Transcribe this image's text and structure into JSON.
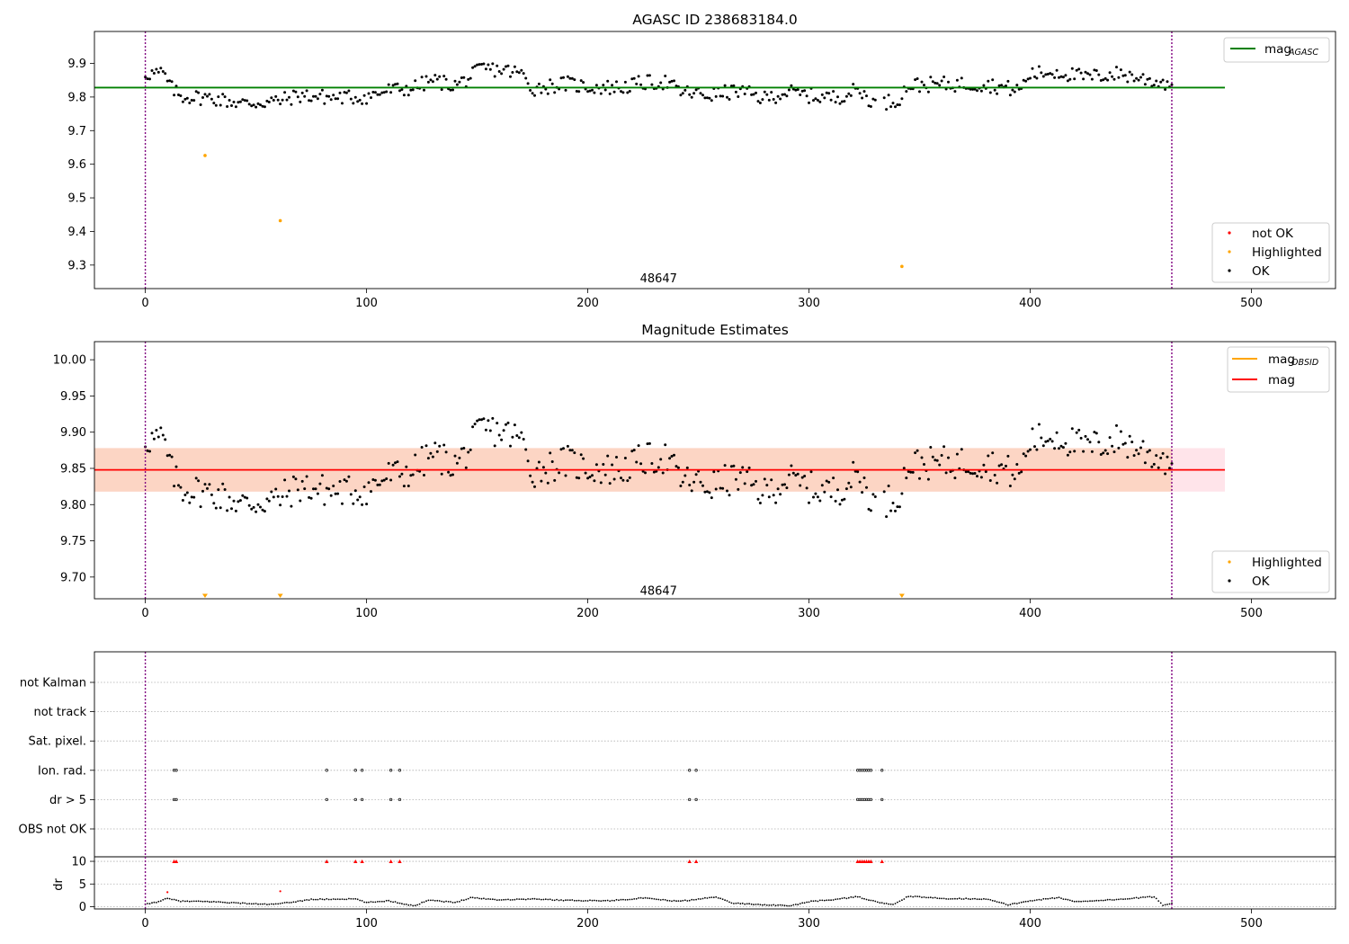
{
  "chart_data": [
    {
      "type": "scatter",
      "title": "AGASC ID 238683184.0",
      "xlim": [
        -23,
        538
      ],
      "ylim": [
        9.23,
        9.995
      ],
      "x_ticks": [
        0,
        100,
        200,
        300,
        400,
        500
      ],
      "y_ticks": [
        9.3,
        9.4,
        9.5,
        9.6,
        9.7,
        9.8,
        9.9
      ],
      "annotation": {
        "text": "48647",
        "x": 232,
        "y": 9.262
      },
      "vlines": [
        0,
        464
      ],
      "hline": {
        "name": "mag",
        "sub": "AGASC",
        "value": 9.828,
        "x_range": [
          -23,
          488
        ],
        "color": "#008000"
      },
      "legend_top": [
        {
          "name": "mag",
          "sub": "AGASC",
          "kind": "line",
          "color": "#008000"
        }
      ],
      "legend_bottom": [
        {
          "name": "not OK",
          "kind": "dot",
          "color": "#ff0000"
        },
        {
          "name": "Highlighted",
          "kind": "dot",
          "color": "#ffa500"
        },
        {
          "name": "OK",
          "kind": "dot",
          "color": "#000000"
        }
      ],
      "highlighted_points": [
        [
          27,
          9.626
        ],
        [
          61,
          9.432
        ],
        [
          342,
          9.296
        ]
      ],
      "ok_series_ref": "ok_profile",
      "ok_offset": -0.02
    },
    {
      "type": "scatter",
      "title": "Magnitude Estimates",
      "xlim": [
        -23,
        538
      ],
      "ylim": [
        9.67,
        10.025
      ],
      "x_ticks": [
        0,
        100,
        200,
        300,
        400,
        500
      ],
      "y_ticks": [
        9.7,
        9.75,
        9.8,
        9.85,
        9.9,
        9.95,
        10.0
      ],
      "y_tick_labels": [
        "9.70",
        "9.75",
        "9.80",
        "9.85",
        "9.90",
        "9.95",
        "10.00"
      ],
      "annotation": {
        "text": "48647",
        "x": 232,
        "y": 9.682
      },
      "vlines": [
        0,
        464
      ],
      "mag_line": {
        "value": 9.848,
        "x_range": [
          -23,
          488
        ],
        "color": "#ff0000"
      },
      "mag_obsid_band": {
        "low": 9.818,
        "high": 9.878,
        "x_range": [
          -23,
          464
        ],
        "color": "#fcd5c4"
      },
      "mag_band": {
        "low": 9.818,
        "high": 9.878,
        "x_range": [
          -23,
          488
        ],
        "color": "#ffe4ea"
      },
      "legend_top": [
        {
          "name": "mag",
          "sub": "OBSID",
          "kind": "line",
          "color": "#ffa500"
        },
        {
          "name": "mag",
          "sub": "",
          "kind": "line",
          "color": "#ff0000"
        }
      ],
      "legend_bottom": [
        {
          "name": "Highlighted",
          "kind": "dot",
          "color": "#ffa500"
        },
        {
          "name": "OK",
          "kind": "dot",
          "color": "#000000"
        }
      ],
      "highlighted_markers": [
        27,
        61,
        342
      ],
      "ok_series_ref": "ok_profile",
      "ok_offset": 0.0
    },
    {
      "type": "scatter",
      "title": "",
      "xlim": [
        -23,
        538
      ],
      "x_ticks": [
        0,
        100,
        200,
        300,
        400,
        500
      ],
      "vlines": [
        0,
        464
      ],
      "flag_rows": [
        "not Kalman",
        "not track",
        "Sat. pixel.",
        "Ion. rad.",
        "dr > 5",
        "OBS not OK"
      ],
      "flag_x": [
        13,
        14,
        82,
        95,
        98,
        111,
        115,
        246,
        249,
        322,
        323,
        324,
        325,
        326,
        327,
        328,
        333
      ],
      "flag_marked_rows": [
        "Ion. rad.",
        "dr > 5"
      ],
      "dr": {
        "ylabel": "dr",
        "ylim": [
          -0.5,
          11
        ],
        "y_ticks": [
          0,
          5,
          10
        ],
        "capped_value": 10,
        "capped_x": [
          13,
          14,
          82,
          95,
          98,
          111,
          115,
          246,
          249,
          322,
          323,
          324,
          325,
          326,
          327,
          328,
          333
        ],
        "red_points": [
          [
            10,
            3.2
          ],
          [
            61,
            3.4
          ]
        ],
        "profile": [
          [
            0,
            0.5
          ],
          [
            5,
            1.0
          ],
          [
            10,
            1.8
          ],
          [
            16,
            1.2
          ],
          [
            30,
            1.1
          ],
          [
            50,
            0.6
          ],
          [
            58,
            0.5
          ],
          [
            65,
            0.9
          ],
          [
            75,
            1.6
          ],
          [
            95,
            1.7
          ],
          [
            100,
            0.9
          ],
          [
            110,
            1.3
          ],
          [
            118,
            0.5
          ],
          [
            122,
            0.2
          ],
          [
            128,
            1.5
          ],
          [
            140,
            0.9
          ],
          [
            147,
            2.0
          ],
          [
            160,
            1.5
          ],
          [
            175,
            1.7
          ],
          [
            190,
            1.4
          ],
          [
            210,
            1.3
          ],
          [
            225,
            1.9
          ],
          [
            240,
            1.2
          ],
          [
            248,
            1.5
          ],
          [
            258,
            2.2
          ],
          [
            265,
            0.8
          ],
          [
            280,
            0.4
          ],
          [
            292,
            0.2
          ],
          [
            300,
            1.1
          ],
          [
            312,
            1.6
          ],
          [
            322,
            2.2
          ],
          [
            330,
            1.1
          ],
          [
            338,
            0.4
          ],
          [
            345,
            2.3
          ],
          [
            360,
            1.8
          ],
          [
            380,
            1.7
          ],
          [
            390,
            0.4
          ],
          [
            400,
            1.3
          ],
          [
            413,
            2.0
          ],
          [
            420,
            1.1
          ],
          [
            440,
            1.6
          ],
          [
            456,
            2.2
          ],
          [
            460,
            0.3
          ],
          [
            464,
            0.8
          ]
        ]
      }
    }
  ],
  "ok_profile": [
    [
      0,
      9.89
    ],
    [
      8,
      9.89
    ],
    [
      12,
      9.845
    ],
    [
      16,
      9.822
    ],
    [
      30,
      9.817
    ],
    [
      45,
      9.8
    ],
    [
      60,
      9.808
    ],
    [
      70,
      9.825
    ],
    [
      85,
      9.818
    ],
    [
      100,
      9.82
    ],
    [
      110,
      9.84
    ],
    [
      120,
      9.845
    ],
    [
      130,
      9.87
    ],
    [
      140,
      9.855
    ],
    [
      146,
      9.875
    ],
    [
      152,
      9.905
    ],
    [
      162,
      9.9
    ],
    [
      170,
      9.89
    ],
    [
      175,
      9.845
    ],
    [
      190,
      9.86
    ],
    [
      200,
      9.85
    ],
    [
      215,
      9.848
    ],
    [
      225,
      9.862
    ],
    [
      235,
      9.865
    ],
    [
      242,
      9.835
    ],
    [
      255,
      9.825
    ],
    [
      268,
      9.838
    ],
    [
      280,
      9.815
    ],
    [
      290,
      9.835
    ],
    [
      302,
      9.822
    ],
    [
      312,
      9.818
    ],
    [
      322,
      9.842
    ],
    [
      330,
      9.8
    ],
    [
      340,
      9.81
    ],
    [
      345,
      9.855
    ],
    [
      360,
      9.858
    ],
    [
      380,
      9.858
    ],
    [
      395,
      9.84
    ],
    [
      400,
      9.888
    ],
    [
      412,
      9.895
    ],
    [
      425,
      9.878
    ],
    [
      440,
      9.89
    ],
    [
      455,
      9.868
    ],
    [
      464,
      9.86
    ]
  ]
}
